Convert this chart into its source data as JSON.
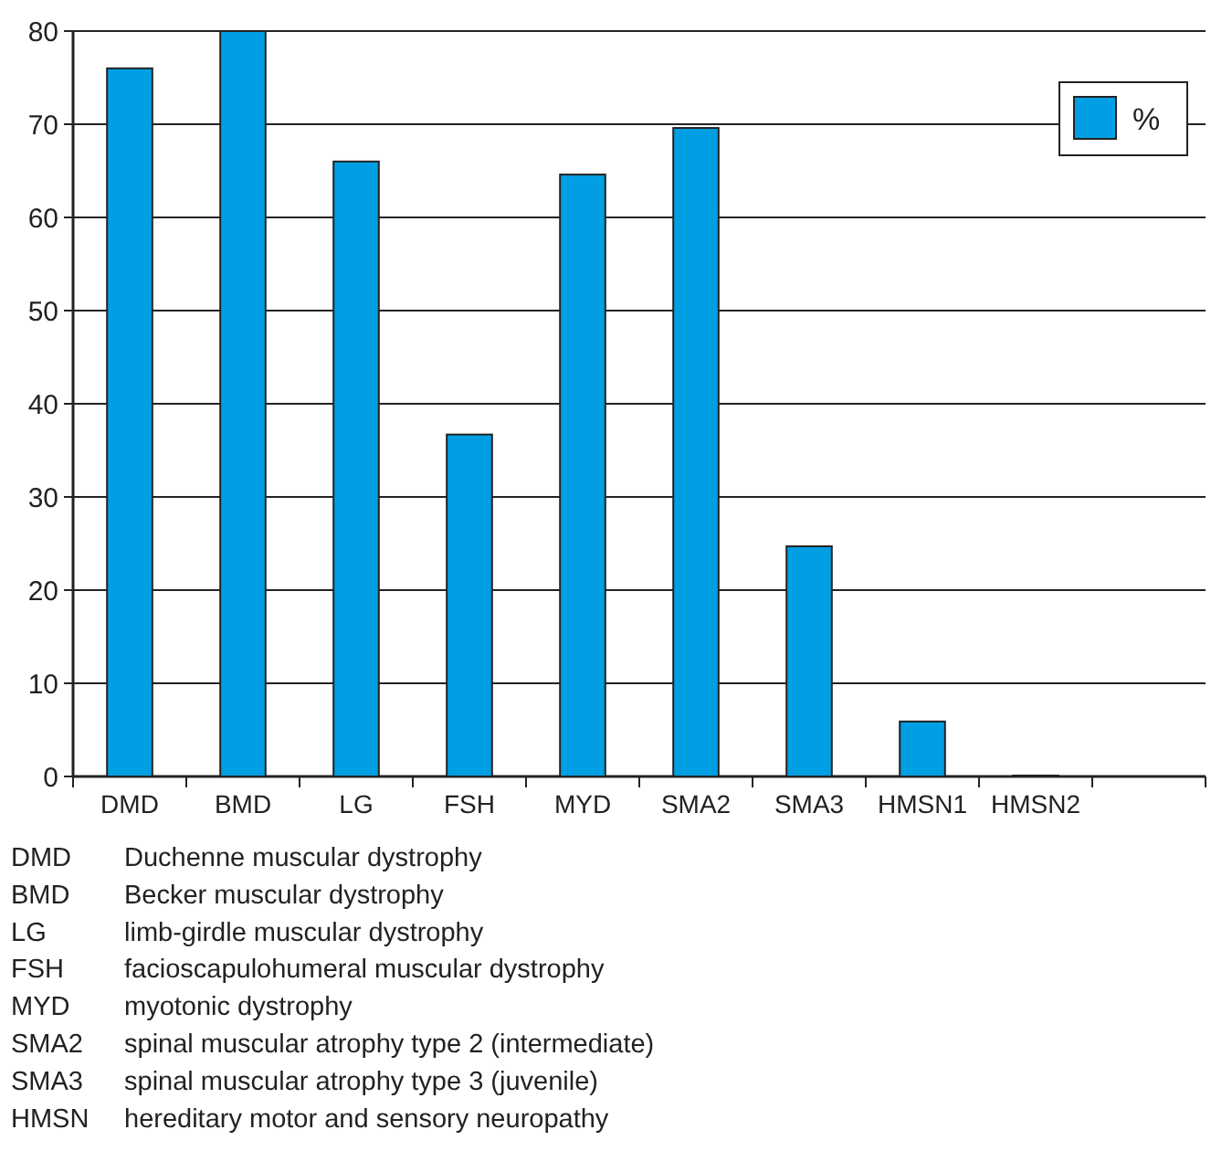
{
  "chart_data": {
    "type": "bar",
    "categories": [
      "DMD",
      "BMD",
      "LG",
      "FSH",
      "MYD",
      "SMA2",
      "SMA3",
      "HMSN1",
      "HMSN2",
      null
    ],
    "series": [
      {
        "name": "%",
        "color": "#009fe3",
        "values": [
          76,
          80,
          66,
          36.7,
          64.6,
          69.6,
          24.7,
          5.9,
          0,
          null
        ]
      }
    ],
    "ylim": [
      0,
      80
    ],
    "yticks": [
      0,
      10,
      20,
      30,
      40,
      50,
      60,
      70,
      80
    ],
    "grid": "y",
    "legend": "top right",
    "annotations": [
      "DMD Duchenne muscular dystrophy",
      "BMD Becker muscular dystrophy",
      "LG limb-girdle muscular dystrophy",
      "FSH facioscapulohumeral muscular dystrophy",
      "MYD myotonic dystrophy",
      "SMA2 spinal muscular atrophy type 2 (intermediate)",
      "SMA3 spinal muscular atrophy type 3 (juvenile)",
      "HMSN hereditary motor and sensory neuropathy"
    ]
  }
}
